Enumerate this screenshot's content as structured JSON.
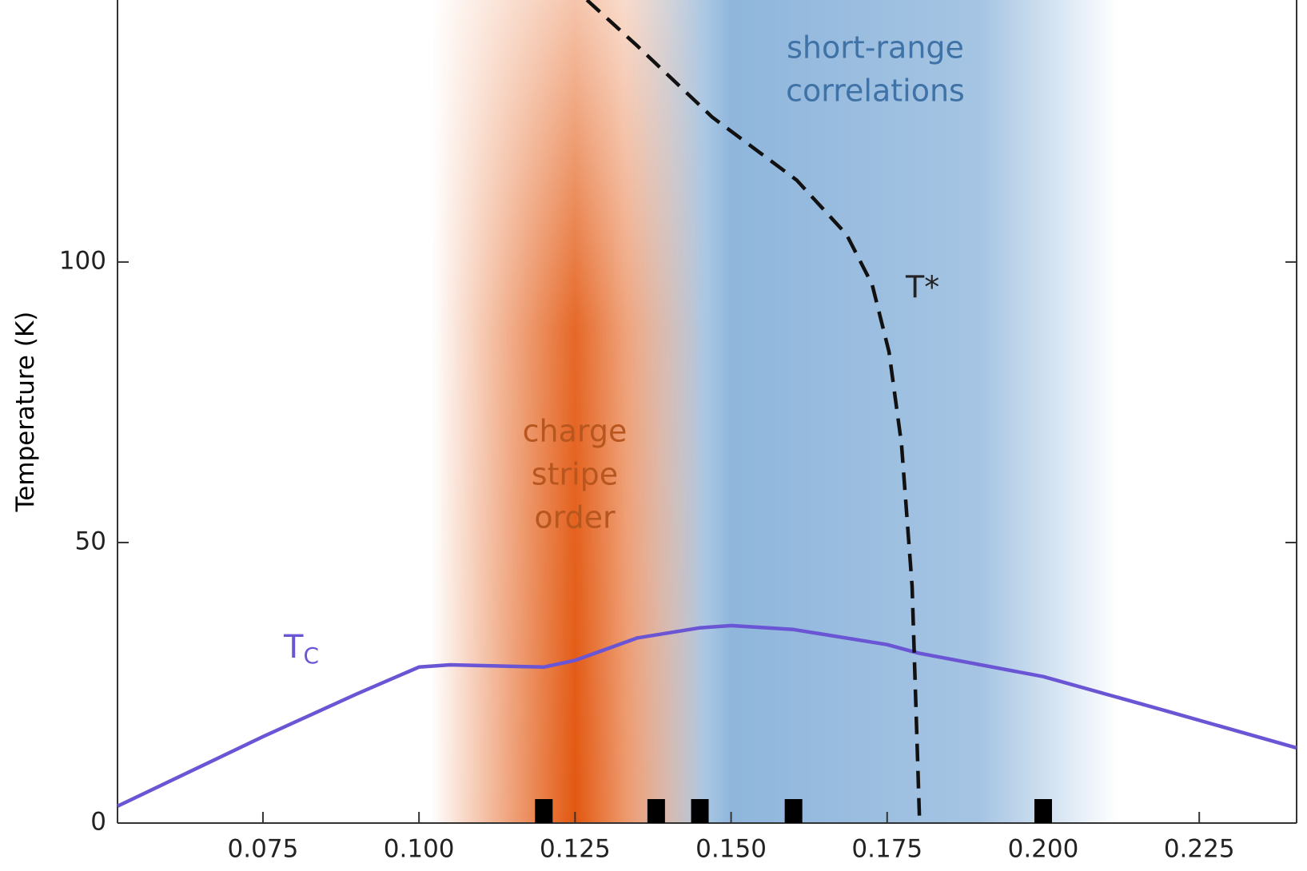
{
  "chart_data": {
    "type": "phase-diagram",
    "y_label": "Temperature (K)",
    "xlim": [
      0.0517,
      0.2406
    ],
    "ylim": [
      0,
      146.7
    ],
    "xticks": [
      {
        "value": 0.075,
        "label": "0.075"
      },
      {
        "value": 0.1,
        "label": "0.100"
      },
      {
        "value": 0.125,
        "label": "0.125"
      },
      {
        "value": 0.15,
        "label": "0.150"
      },
      {
        "value": 0.175,
        "label": "0.175"
      },
      {
        "value": 0.2,
        "label": "0.200"
      },
      {
        "value": 0.225,
        "label": "0.225"
      }
    ],
    "yticks": [
      0,
      50,
      100
    ],
    "regions": [
      {
        "lines": [
          "short-range",
          "correlations"
        ],
        "color": "#8fb6dc",
        "text_color": "#3f72a6",
        "x": [
          0.133,
          0.15,
          0.19,
          0.212
        ]
      },
      {
        "lines": [
          "charge",
          "stripe",
          "order"
        ],
        "color": "#e2570f",
        "text_color": "#b8561f",
        "x": [
          0.102,
          0.125,
          0.146
        ]
      }
    ],
    "series": [
      {
        "name": "T",
        "name_sub": "C",
        "color": "#6a55d4",
        "style": "solid",
        "x": [
          0.0517,
          0.075,
          0.09,
          0.1,
          0.105,
          0.12,
          0.125,
          0.135,
          0.145,
          0.15,
          0.16,
          0.175,
          0.18,
          0.2,
          0.22,
          0.2406
        ],
        "values": [
          3,
          15.4,
          23,
          27.8,
          28.2,
          27.8,
          29,
          33,
          34.8,
          35.2,
          34.5,
          31.8,
          30.3,
          26.1,
          19.9,
          13.4
        ]
      },
      {
        "name": "T*",
        "color": "#111111",
        "style": "dashed",
        "x": [
          0.1269,
          0.135,
          0.147,
          0.1605,
          0.1685,
          0.1726,
          0.1753,
          0.1773,
          0.179,
          0.1802
        ],
        "values": [
          146.7,
          138.5,
          125.8,
          114.6,
          104.9,
          96,
          84,
          67.6,
          42.2,
          0
        ]
      }
    ],
    "markers": {
      "color": "#000000",
      "x": [
        0.12,
        0.138,
        0.145,
        0.16,
        0.2
      ],
      "values": [
        0,
        0,
        0,
        0,
        0
      ]
    }
  }
}
